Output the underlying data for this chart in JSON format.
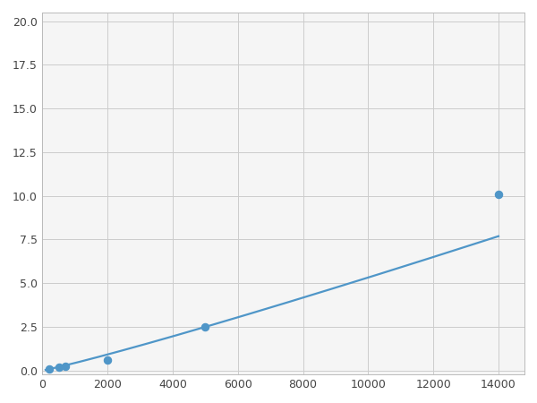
{
  "x": [
    200,
    500,
    700,
    2000,
    5000,
    14000
  ],
  "y": [
    0.1,
    0.2,
    0.25,
    0.6,
    2.5,
    10.1
  ],
  "line_color": "#4f96c8",
  "marker_color": "#4f96c8",
  "marker_size": 6,
  "line_width": 1.6,
  "xlim": [
    0,
    14800
  ],
  "ylim": [
    -0.2,
    20.5
  ],
  "xticks": [
    0,
    2000,
    4000,
    6000,
    8000,
    10000,
    12000,
    14000
  ],
  "yticks": [
    0.0,
    2.5,
    5.0,
    7.5,
    10.0,
    12.5,
    15.0,
    17.5,
    20.0
  ],
  "grid_color": "#cccccc",
  "background_color": "#f5f5f5",
  "figure_background": "#ffffff"
}
